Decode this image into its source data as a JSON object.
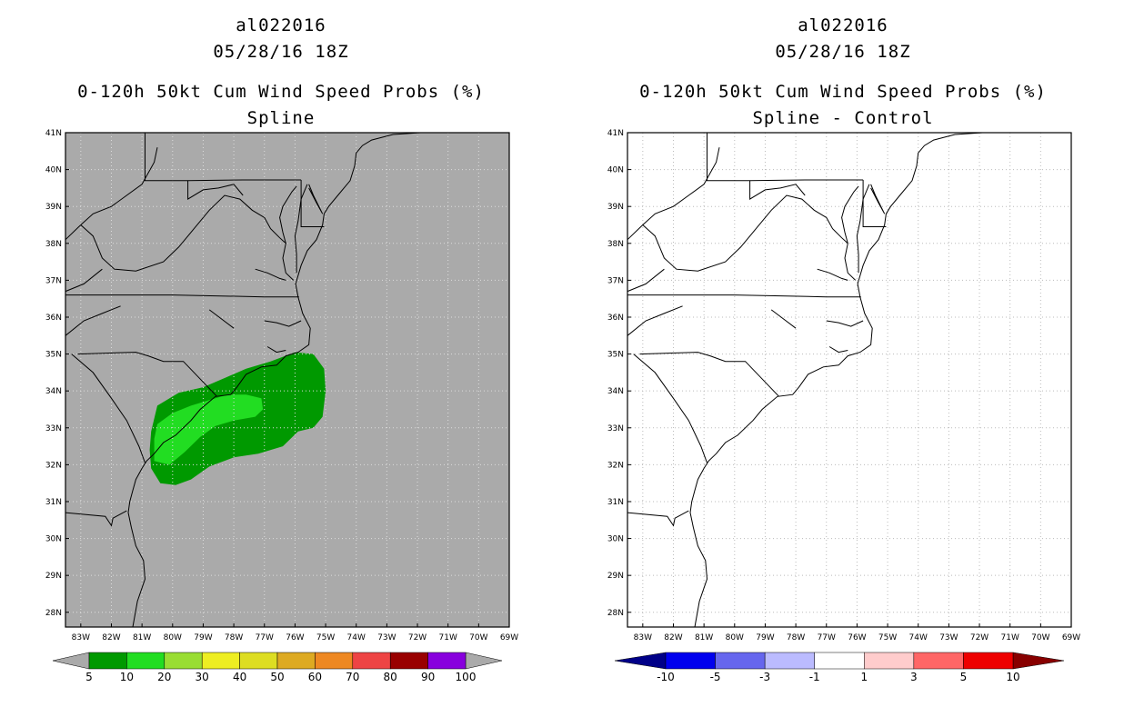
{
  "panels": [
    {
      "title_line1": "al022016",
      "title_line2": "05/28/16 18Z",
      "title_line3": "0-120h 50kt Cum Wind Speed Probs (%)",
      "title_line4": "Spline",
      "background": "#aaaaaa",
      "colorbar": {
        "labels": [
          "5",
          "10",
          "20",
          "30",
          "40",
          "50",
          "60",
          "70",
          "80",
          "90",
          "100"
        ],
        "colors": [
          "#009900",
          "#22dd22",
          "#99dd33",
          "#eeee22",
          "#dddd22",
          "#ddaa22",
          "#ee8822",
          "#ee4444",
          "#990000",
          "#8800dd"
        ],
        "end_colors": [
          "#aaaaaa",
          "#aaaaaa"
        ]
      }
    },
    {
      "title_line1": "al022016",
      "title_line2": "05/28/16 18Z",
      "title_line3": "0-120h 50kt Cum Wind Speed Probs (%)",
      "title_line4": "Spline - Control",
      "background": "#ffffff",
      "colorbar": {
        "labels": [
          "-10",
          "-5",
          "-3",
          "-1",
          "1",
          "3",
          "5",
          "10"
        ],
        "colors": [
          "#0000ee",
          "#6666ee",
          "#bbbbff",
          "#ffffff",
          "#ffcccc",
          "#ff6666",
          "#ee0000"
        ],
        "end_colors": [
          "#000088",
          "#880000"
        ]
      }
    }
  ],
  "axes": {
    "lat_labels": [
      "41N",
      "40N",
      "39N",
      "38N",
      "37N",
      "36N",
      "35N",
      "34N",
      "33N",
      "32N",
      "31N",
      "30N",
      "29N",
      "28N"
    ],
    "lon_labels": [
      "83W",
      "82W",
      "81W",
      "80W",
      "79W",
      "78W",
      "77W",
      "76W",
      "75W",
      "74W",
      "73W",
      "72W",
      "71W",
      "70W",
      "69W"
    ]
  },
  "chart_data": {
    "type": "map",
    "extent": {
      "lon": [
        -83.5,
        -69
      ],
      "lat": [
        27.6,
        41
      ]
    },
    "grid": true,
    "probability_regions": [
      {
        "level": "5-10%",
        "color": "#009900",
        "approx_extent_lon": [
          -80.7,
          -75.0
        ],
        "approx_extent_lat": [
          31.4,
          35.1
        ]
      },
      {
        "level": "10-20%",
        "color": "#22dd22",
        "approx_extent_lon": [
          -80.2,
          -77.1
        ],
        "approx_extent_lat": [
          31.9,
          33.6
        ]
      }
    ],
    "difference_field": "0 everywhere (white)"
  }
}
